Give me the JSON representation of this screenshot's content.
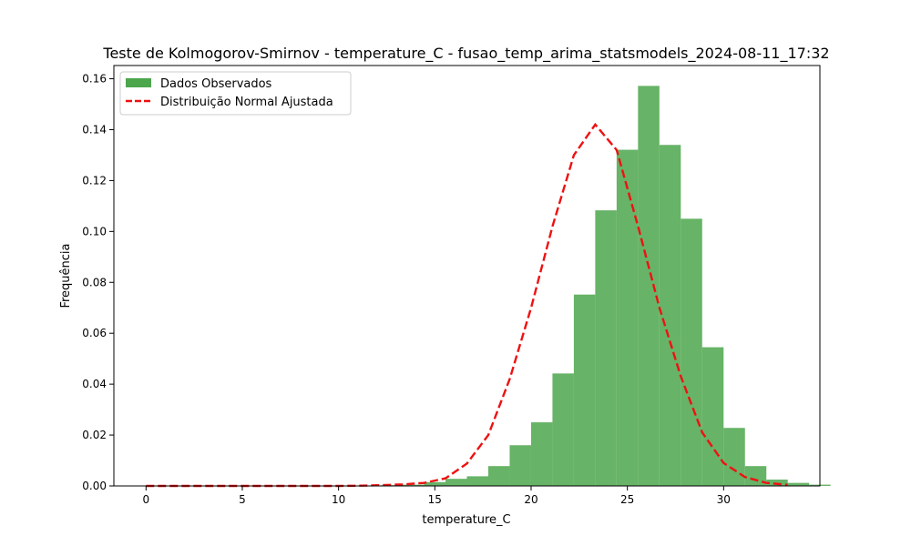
{
  "chart_data": {
    "type": "histogram",
    "title": "Teste de Kolmogorov-Smirnov - temperature_C - fusao_temp_arima_statsmodels_2024-08-11_17:32",
    "xlabel": "temperature_C",
    "ylabel": "Frequência",
    "xlim": [
      -1.67,
      35.0
    ],
    "ylim": [
      0,
      0.1652
    ],
    "xticks": [
      0,
      5,
      10,
      15,
      20,
      25,
      30
    ],
    "yticks": [
      0.0,
      0.02,
      0.04,
      0.06,
      0.08,
      0.1,
      0.12,
      0.14,
      0.16
    ],
    "ytick_labels": [
      "0.00",
      "0.02",
      "0.04",
      "0.06",
      "0.08",
      "0.10",
      "0.12",
      "0.14",
      "0.16"
    ],
    "grid": false,
    "legend": {
      "placement": "top-left",
      "entries": [
        "Dados Observados",
        "Distribuição Normal Ajustada"
      ]
    },
    "bins_start": 0.0,
    "bin_width": 1.111,
    "histogram": {
      "name": "Dados Observados",
      "color": "#4ca64c",
      "values": [
        0.0001,
        0,
        0,
        0,
        0,
        0,
        0,
        0,
        0,
        0,
        0.0001,
        0.0003,
        0.0005,
        0.0015,
        0.0028,
        0.0038,
        0.0078,
        0.016,
        0.025,
        0.0442,
        0.0752,
        0.1083,
        0.1321,
        0.1572,
        0.134,
        0.105,
        0.0545,
        0.0228,
        0.0078,
        0.0025,
        0.0012,
        0.0005
      ]
    },
    "fit": {
      "name": "Distribuição Normal Ajustada",
      "color": "#ee1111",
      "style": "dashed",
      "x": [
        0,
        1.111,
        2.222,
        3.333,
        4.444,
        5.556,
        6.667,
        7.778,
        8.889,
        10.0,
        11.111,
        12.222,
        13.333,
        14.444,
        15.556,
        16.667,
        17.778,
        18.889,
        20.0,
        21.111,
        22.222,
        23.333,
        24.444,
        25.556,
        26.667,
        27.778,
        28.889,
        30.0,
        31.111,
        32.222,
        33.333
      ],
      "y": [
        0,
        0,
        0,
        0,
        0,
        0,
        0,
        0,
        0,
        0,
        0.0001,
        0.0003,
        0.0006,
        0.0012,
        0.003,
        0.0088,
        0.02,
        0.042,
        0.07,
        0.102,
        0.13,
        0.142,
        0.132,
        0.102,
        0.07,
        0.043,
        0.021,
        0.009,
        0.0035,
        0.0012,
        0.0004
      ]
    }
  }
}
